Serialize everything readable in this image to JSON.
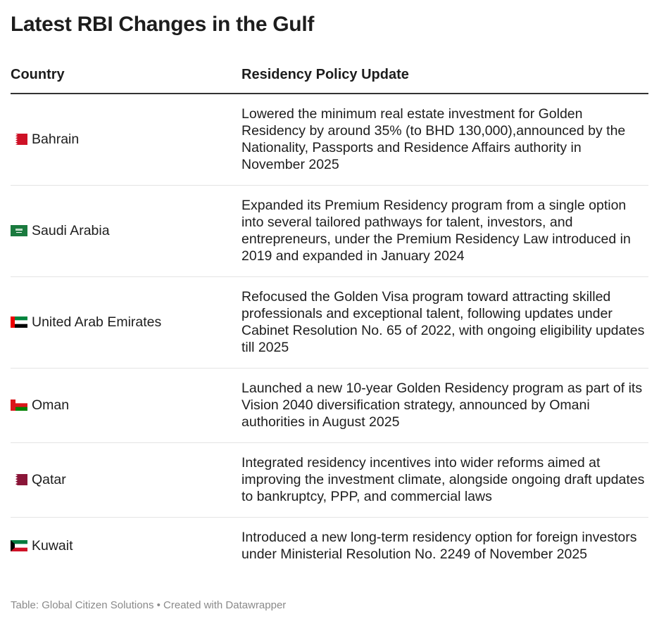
{
  "title": "Latest RBI Changes in the Gulf",
  "chart_data": {
    "type": "table",
    "columns": [
      "Country",
      "Residency Policy Update"
    ],
    "rows": [
      {
        "flag": "flag-bahrain-icon",
        "country": "Bahrain",
        "update": "Lowered the minimum real estate investment for Golden Residency by around 35% (to BHD 130,000),announced by the Nationality, Passports and Residence Affairs authority in November 2025"
      },
      {
        "flag": "flag-saudi-arabia-icon",
        "country": "Saudi Arabia",
        "update": "Expanded its Premium Residency program from a single option into several tailored pathways for talent, investors, and entrepreneurs, under the Premium Residency Law introduced in 2019 and expanded in January 2024"
      },
      {
        "flag": "flag-uae-icon",
        "country": "United Arab Emirates",
        "update": "Refocused the Golden Visa program toward attracting skilled professionals and exceptional talent, following updates under Cabinet Resolution No. 65 of 2022, with ongoing eligibility updates till 2025"
      },
      {
        "flag": "flag-oman-icon",
        "country": "Oman",
        "update": "Launched a new 10-year Golden Residency program as part of its Vision 2040 diversification strategy, announced by Omani authorities in August 2025"
      },
      {
        "flag": "flag-qatar-icon",
        "country": "Qatar",
        "update": "Integrated residency incentives into wider reforms aimed at improving the investment climate, alongside ongoing draft updates to bankruptcy, PPP, and commercial laws"
      },
      {
        "flag": "flag-kuwait-icon",
        "country": "Kuwait",
        "update": "Introduced a new long-term residency option for foreign investors under Ministerial Resolution No. 2249 of November 2025"
      }
    ]
  },
  "footer": {
    "source": "Table: Global Citizen Solutions",
    "separator": " • ",
    "credit": "Created with Datawrapper"
  }
}
